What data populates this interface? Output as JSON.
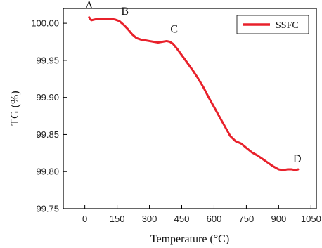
{
  "chart_data": {
    "type": "line",
    "xlabel": "Temperature (°C)",
    "ylabel": "TG (%)",
    "xlim": [
      -100,
      1075
    ],
    "ylim": [
      99.75,
      100.02
    ],
    "xticks": [
      0,
      150,
      300,
      450,
      600,
      750,
      900,
      1050
    ],
    "yticks": [
      99.75,
      99.8,
      99.85,
      99.9,
      99.95,
      100.0
    ],
    "xtick_labels": [
      "0",
      "150",
      "300",
      "450",
      "600",
      "750",
      "900",
      "1050"
    ],
    "ytick_labels": [
      "99.75",
      "99.80",
      "99.85",
      "99.90",
      "99.95",
      "100.00"
    ],
    "grid": false,
    "legend": {
      "position": "top-right"
    },
    "series": [
      {
        "name": "SSFC",
        "color": "#e8212b",
        "x": [
          20,
          30,
          45,
          60,
          80,
          100,
          120,
          140,
          160,
          180,
          200,
          220,
          240,
          260,
          280,
          300,
          320,
          340,
          360,
          380,
          395,
          410,
          430,
          450,
          475,
          500,
          525,
          550,
          575,
          600,
          625,
          650,
          675,
          700,
          725,
          750,
          775,
          800,
          825,
          850,
          875,
          900,
          920,
          940,
          960,
          980,
          990
        ],
        "y": [
          100.008,
          100.004,
          100.005,
          100.006,
          100.006,
          100.006,
          100.006,
          100.005,
          100.003,
          99.998,
          99.992,
          99.985,
          99.98,
          99.978,
          99.977,
          99.976,
          99.975,
          99.974,
          99.975,
          99.976,
          99.975,
          99.972,
          99.965,
          99.957,
          99.947,
          99.937,
          99.926,
          99.914,
          99.9,
          99.887,
          99.874,
          99.861,
          99.848,
          99.841,
          99.838,
          99.832,
          99.826,
          99.822,
          99.817,
          99.812,
          99.807,
          99.803,
          99.802,
          99.803,
          99.803,
          99.802,
          99.803
        ]
      }
    ],
    "annotations": [
      {
        "text": "A",
        "x": 20,
        "y": 100.008
      },
      {
        "text": "B",
        "x": 160,
        "y": 100.003
      },
      {
        "text": "C",
        "x": 395,
        "y": 99.975
      },
      {
        "text": "D",
        "x": 960,
        "y": 99.803
      }
    ]
  }
}
